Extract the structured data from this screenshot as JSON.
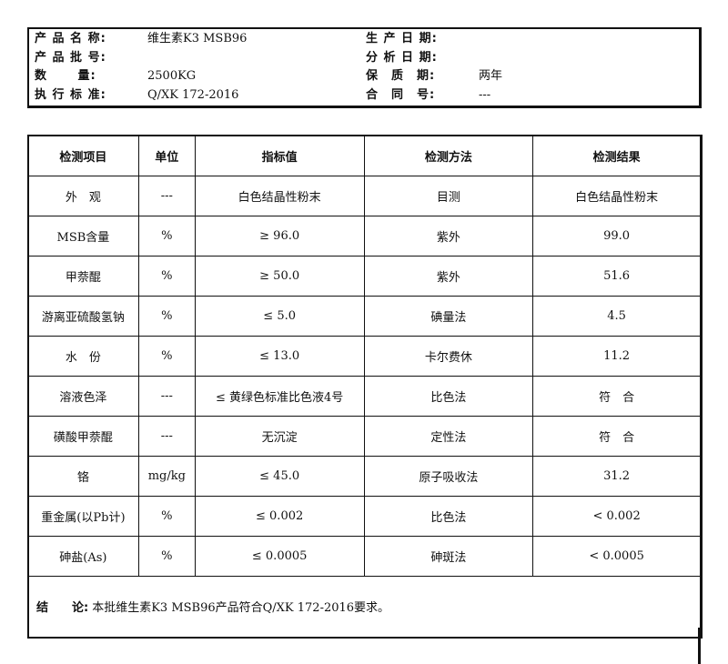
{
  "header": {
    "left": [
      {
        "label": "产 品 名 称:",
        "value": "维生素K3 MSB96"
      },
      {
        "label": "产 品 批 号:",
        "value": ""
      },
      {
        "label": "数　　 量:",
        "value": "2500KG"
      },
      {
        "label": "执 行 标 准:",
        "value": "Q/XK 172-2016"
      }
    ],
    "right": [
      {
        "label": "生 产 日 期:",
        "value": ""
      },
      {
        "label": "分 析 日 期:",
        "value": ""
      },
      {
        "label": "保　质　期:",
        "value": "两年"
      },
      {
        "label": "合　同　号:",
        "value": "---"
      }
    ]
  },
  "table": {
    "columns": [
      "检测项目",
      "单位",
      "指标值",
      "检测方法",
      "检测结果"
    ],
    "rows": [
      [
        "外　观",
        "---",
        "白色结晶性粉末",
        "目测",
        "白色结晶性粉末"
      ],
      [
        "MSB含量",
        "%",
        "≥ 96.0",
        "紫外",
        "99.0"
      ],
      [
        "甲萘醌",
        "%",
        "≥ 50.0",
        "紫外",
        "51.6"
      ],
      [
        "游离亚硫酸氢钠",
        "%",
        "≤ 5.0",
        "碘量法",
        "4.5"
      ],
      [
        "水　份",
        "%",
        "≤ 13.0",
        "卡尔费休",
        "11.2"
      ],
      [
        "溶液色泽",
        "---",
        "≤ 黄绿色标准比色液4号",
        "比色法",
        "符　合"
      ],
      [
        "磺酸甲萘醌",
        "---",
        "无沉淀",
        "定性法",
        "符　合"
      ],
      [
        "铬",
        "mg/kg",
        "≤ 45.0",
        "原子吸收法",
        "31.2"
      ],
      [
        "重金属(以Pb计)",
        "%",
        "≤ 0.002",
        "比色法",
        "< 0.002"
      ],
      [
        "砷盐(As)",
        "%",
        "≤ 0.0005",
        "砷斑法",
        "< 0.0005"
      ]
    ]
  },
  "conclusion": {
    "label": "结　　论:",
    "text": "本批维生素K3 MSB96产品符合Q/XK 172-2016要求。"
  }
}
